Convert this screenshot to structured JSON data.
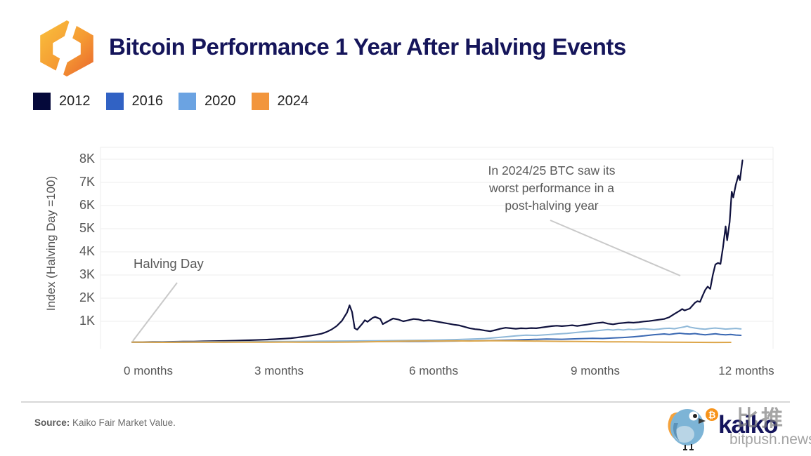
{
  "header": {
    "title": "Bitcoin Performance 1 Year After Halving Events",
    "logo": "kaiko-hexagon-logo"
  },
  "legend": [
    {
      "label": "2012",
      "color": "#05093a"
    },
    {
      "label": "2016",
      "color": "#3162c4"
    },
    {
      "label": "2020",
      "color": "#6ba3e2"
    },
    {
      "label": "2024",
      "color": "#f2953c"
    }
  ],
  "annotations": {
    "halving_day": "Halving Day",
    "worst_line1": "In 2024/25 BTC saw its",
    "worst_line2": "worst performance in a",
    "worst_line3": "post-halving year"
  },
  "footer": {
    "source_label": "Source:",
    "source_text": "Kaiko Fair Market Value.",
    "brand": "kaiko",
    "watermark_cn": "比推",
    "watermark_site": "bitpush.news"
  },
  "chart_data": {
    "type": "line",
    "title": "Bitcoin Performance 1 Year After Halving Events",
    "ylabel": "Index (Halving Day =100)",
    "xlabel": "",
    "yticks": [
      "1K",
      "2K",
      "3K",
      "4K",
      "5K",
      "6K",
      "7K",
      "8K"
    ],
    "ytick_values": [
      1000,
      2000,
      3000,
      4000,
      5000,
      6000,
      7000,
      8000
    ],
    "xticks": [
      "0 months",
      "3 months",
      "6 months",
      "9 months",
      "12 months"
    ],
    "xtick_months": [
      0,
      3,
      6,
      9,
      12
    ],
    "ylim": [
      0,
      8500
    ],
    "xlim_months": [
      0,
      12.5
    ],
    "grid": "horizontal-light",
    "legend_position": "top-left",
    "annotations": [
      {
        "text": "Halving Day",
        "points_to": "series start at month 0, index 100"
      },
      {
        "text": "In 2024/25 BTC saw its worst performance in a post-halving year",
        "points_to": "2024 series (flat near 100)"
      }
    ],
    "series": [
      {
        "name": "2012",
        "color": "#10123e",
        "width": 2.2,
        "points": [
          [
            0,
            100
          ],
          [
            0.2,
            104
          ],
          [
            0.4,
            108
          ],
          [
            0.6,
            112
          ],
          [
            0.8,
            118
          ],
          [
            1,
            124
          ],
          [
            1.2,
            128
          ],
          [
            1.4,
            136
          ],
          [
            1.6,
            144
          ],
          [
            1.8,
            152
          ],
          [
            2,
            163
          ],
          [
            2.2,
            178
          ],
          [
            2.4,
            192
          ],
          [
            2.6,
            205
          ],
          [
            2.8,
            228
          ],
          [
            3,
            255
          ],
          [
            3.1,
            270
          ],
          [
            3.2,
            295
          ],
          [
            3.3,
            320
          ],
          [
            3.4,
            350
          ],
          [
            3.5,
            385
          ],
          [
            3.6,
            420
          ],
          [
            3.7,
            465
          ],
          [
            3.8,
            540
          ],
          [
            3.9,
            650
          ],
          [
            4.0,
            800
          ],
          [
            4.1,
            1020
          ],
          [
            4.2,
            1380
          ],
          [
            4.25,
            1690
          ],
          [
            4.3,
            1400
          ],
          [
            4.35,
            700
          ],
          [
            4.4,
            640
          ],
          [
            4.5,
            900
          ],
          [
            4.55,
            1050
          ],
          [
            4.6,
            980
          ],
          [
            4.7,
            1150
          ],
          [
            4.75,
            1190
          ],
          [
            4.85,
            1100
          ],
          [
            4.9,
            880
          ],
          [
            5.0,
            1000
          ],
          [
            5.1,
            1120
          ],
          [
            5.2,
            1080
          ],
          [
            5.3,
            1000
          ],
          [
            5.4,
            1050
          ],
          [
            5.5,
            1100
          ],
          [
            5.6,
            1080
          ],
          [
            5.7,
            1020
          ],
          [
            5.8,
            1050
          ],
          [
            5.9,
            1010
          ],
          [
            6.0,
            970
          ],
          [
            6.1,
            930
          ],
          [
            6.2,
            890
          ],
          [
            6.3,
            850
          ],
          [
            6.4,
            820
          ],
          [
            6.5,
            760
          ],
          [
            6.6,
            700
          ],
          [
            6.7,
            660
          ],
          [
            6.8,
            640
          ],
          [
            6.9,
            600
          ],
          [
            7.0,
            570
          ],
          [
            7.1,
            620
          ],
          [
            7.2,
            680
          ],
          [
            7.3,
            720
          ],
          [
            7.4,
            700
          ],
          [
            7.5,
            680
          ],
          [
            7.6,
            700
          ],
          [
            7.7,
            690
          ],
          [
            7.8,
            710
          ],
          [
            7.9,
            700
          ],
          [
            8.0,
            730
          ],
          [
            8.1,
            760
          ],
          [
            8.2,
            790
          ],
          [
            8.3,
            810
          ],
          [
            8.4,
            790
          ],
          [
            8.5,
            810
          ],
          [
            8.6,
            830
          ],
          [
            8.7,
            800
          ],
          [
            8.8,
            830
          ],
          [
            8.9,
            860
          ],
          [
            9.0,
            900
          ],
          [
            9.1,
            930
          ],
          [
            9.2,
            950
          ],
          [
            9.3,
            900
          ],
          [
            9.4,
            870
          ],
          [
            9.5,
            910
          ],
          [
            9.6,
            930
          ],
          [
            9.7,
            950
          ],
          [
            9.8,
            940
          ],
          [
            9.9,
            960
          ],
          [
            10.0,
            990
          ],
          [
            10.1,
            1010
          ],
          [
            10.2,
            1040
          ],
          [
            10.3,
            1070
          ],
          [
            10.4,
            1100
          ],
          [
            10.5,
            1180
          ],
          [
            10.6,
            1320
          ],
          [
            10.7,
            1450
          ],
          [
            10.75,
            1530
          ],
          [
            10.8,
            1470
          ],
          [
            10.9,
            1550
          ],
          [
            11.0,
            1800
          ],
          [
            11.05,
            1870
          ],
          [
            11.1,
            1840
          ],
          [
            11.15,
            2100
          ],
          [
            11.2,
            2350
          ],
          [
            11.25,
            2500
          ],
          [
            11.3,
            2400
          ],
          [
            11.35,
            3000
          ],
          [
            11.4,
            3450
          ],
          [
            11.45,
            3520
          ],
          [
            11.5,
            3480
          ],
          [
            11.55,
            4200
          ],
          [
            11.6,
            5100
          ],
          [
            11.63,
            4500
          ],
          [
            11.68,
            5300
          ],
          [
            11.72,
            6600
          ],
          [
            11.75,
            6350
          ],
          [
            11.8,
            6900
          ],
          [
            11.85,
            7300
          ],
          [
            11.88,
            7100
          ],
          [
            11.93,
            7950
          ]
        ]
      },
      {
        "name": "2016",
        "color": "#3a68b2",
        "width": 2,
        "points": [
          [
            0,
            100
          ],
          [
            0.3,
            96
          ],
          [
            0.6,
            92
          ],
          [
            0.9,
            95
          ],
          [
            1.2,
            100
          ],
          [
            1.5,
            104
          ],
          [
            1.8,
            100
          ],
          [
            2.1,
            106
          ],
          [
            2.4,
            110
          ],
          [
            2.7,
            108
          ],
          [
            3,
            112
          ],
          [
            3.3,
            116
          ],
          [
            3.6,
            114
          ],
          [
            3.9,
            118
          ],
          [
            4.2,
            122
          ],
          [
            4.5,
            120
          ],
          [
            4.8,
            125
          ],
          [
            5.1,
            128
          ],
          [
            5.4,
            126
          ],
          [
            5.7,
            132
          ],
          [
            6,
            140
          ],
          [
            6.3,
            148
          ],
          [
            6.6,
            155
          ],
          [
            6.9,
            165
          ],
          [
            7.2,
            178
          ],
          [
            7.5,
            195
          ],
          [
            7.8,
            215
          ],
          [
            8.1,
            235
          ],
          [
            8.4,
            225
          ],
          [
            8.7,
            245
          ],
          [
            9,
            265
          ],
          [
            9.2,
            258
          ],
          [
            9.4,
            280
          ],
          [
            9.6,
            300
          ],
          [
            9.8,
            330
          ],
          [
            10,
            370
          ],
          [
            10.2,
            420
          ],
          [
            10.4,
            455
          ],
          [
            10.5,
            430
          ],
          [
            10.6,
            460
          ],
          [
            10.7,
            485
          ],
          [
            10.8,
            465
          ],
          [
            10.9,
            450
          ],
          [
            11,
            470
          ],
          [
            11.1,
            440
          ],
          [
            11.2,
            415
          ],
          [
            11.3,
            440
          ],
          [
            11.4,
            460
          ],
          [
            11.5,
            430
          ],
          [
            11.6,
            415
          ],
          [
            11.7,
            430
          ],
          [
            11.8,
            405
          ],
          [
            11.9,
            395
          ]
        ]
      },
      {
        "name": "2020",
        "color": "#8fb8d8",
        "width": 2,
        "points": [
          [
            0,
            100
          ],
          [
            0.3,
            102
          ],
          [
            0.6,
            105
          ],
          [
            0.9,
            108
          ],
          [
            1.2,
            110
          ],
          [
            1.5,
            115
          ],
          [
            1.8,
            112
          ],
          [
            2.1,
            118
          ],
          [
            2.4,
            122
          ],
          [
            2.7,
            126
          ],
          [
            3,
            130
          ],
          [
            3.3,
            134
          ],
          [
            3.6,
            138
          ],
          [
            3.9,
            142
          ],
          [
            4.2,
            148
          ],
          [
            4.5,
            155
          ],
          [
            4.8,
            160
          ],
          [
            5.1,
            168
          ],
          [
            5.4,
            175
          ],
          [
            5.7,
            182
          ],
          [
            6,
            195
          ],
          [
            6.3,
            210
          ],
          [
            6.6,
            230
          ],
          [
            6.9,
            255
          ],
          [
            7.1,
            290
          ],
          [
            7.3,
            330
          ],
          [
            7.5,
            370
          ],
          [
            7.7,
            400
          ],
          [
            7.9,
            390
          ],
          [
            8.1,
            420
          ],
          [
            8.3,
            450
          ],
          [
            8.5,
            480
          ],
          [
            8.7,
            520
          ],
          [
            8.9,
            560
          ],
          [
            9.1,
            600
          ],
          [
            9.3,
            645
          ],
          [
            9.4,
            620
          ],
          [
            9.5,
            650
          ],
          [
            9.6,
            625
          ],
          [
            9.7,
            655
          ],
          [
            9.8,
            640
          ],
          [
            9.9,
            660
          ],
          [
            10,
            680
          ],
          [
            10.1,
            660
          ],
          [
            10.2,
            645
          ],
          [
            10.3,
            665
          ],
          [
            10.4,
            690
          ],
          [
            10.5,
            700
          ],
          [
            10.6,
            680
          ],
          [
            10.7,
            720
          ],
          [
            10.8,
            760
          ],
          [
            10.85,
            790
          ],
          [
            10.9,
            750
          ],
          [
            11,
            710
          ],
          [
            11.1,
            680
          ],
          [
            11.2,
            660
          ],
          [
            11.3,
            690
          ],
          [
            11.4,
            710
          ],
          [
            11.5,
            690
          ],
          [
            11.6,
            665
          ],
          [
            11.7,
            680
          ],
          [
            11.8,
            695
          ],
          [
            11.9,
            670
          ]
        ]
      },
      {
        "name": "2024",
        "color": "#dda64a",
        "width": 2,
        "points": [
          [
            0,
            100
          ],
          [
            0.3,
            96
          ],
          [
            0.6,
            92
          ],
          [
            0.9,
            95
          ],
          [
            1.2,
            98
          ],
          [
            1.5,
            94
          ],
          [
            1.8,
            97
          ],
          [
            2.1,
            100
          ],
          [
            2.4,
            96
          ],
          [
            2.7,
            99
          ],
          [
            3,
            103
          ],
          [
            3.3,
            99
          ],
          [
            3.6,
            96
          ],
          [
            3.9,
            100
          ],
          [
            4.2,
            104
          ],
          [
            4.5,
            108
          ],
          [
            4.8,
            120
          ],
          [
            5.1,
            132
          ],
          [
            5.4,
            145
          ],
          [
            5.7,
            152
          ],
          [
            6,
            148
          ],
          [
            6.3,
            155
          ],
          [
            6.6,
            150
          ],
          [
            6.9,
            158
          ],
          [
            7.2,
            162
          ],
          [
            7.5,
            155
          ],
          [
            7.8,
            148
          ],
          [
            8.1,
            140
          ],
          [
            8.4,
            132
          ],
          [
            8.7,
            126
          ],
          [
            9,
            120
          ],
          [
            9.3,
            116
          ],
          [
            9.6,
            112
          ],
          [
            9.9,
            108
          ],
          [
            10.2,
            104
          ],
          [
            10.5,
            100
          ],
          [
            10.8,
            95
          ],
          [
            11.1,
            90
          ],
          [
            11.4,
            88
          ],
          [
            11.7,
            92
          ]
        ]
      }
    ]
  }
}
